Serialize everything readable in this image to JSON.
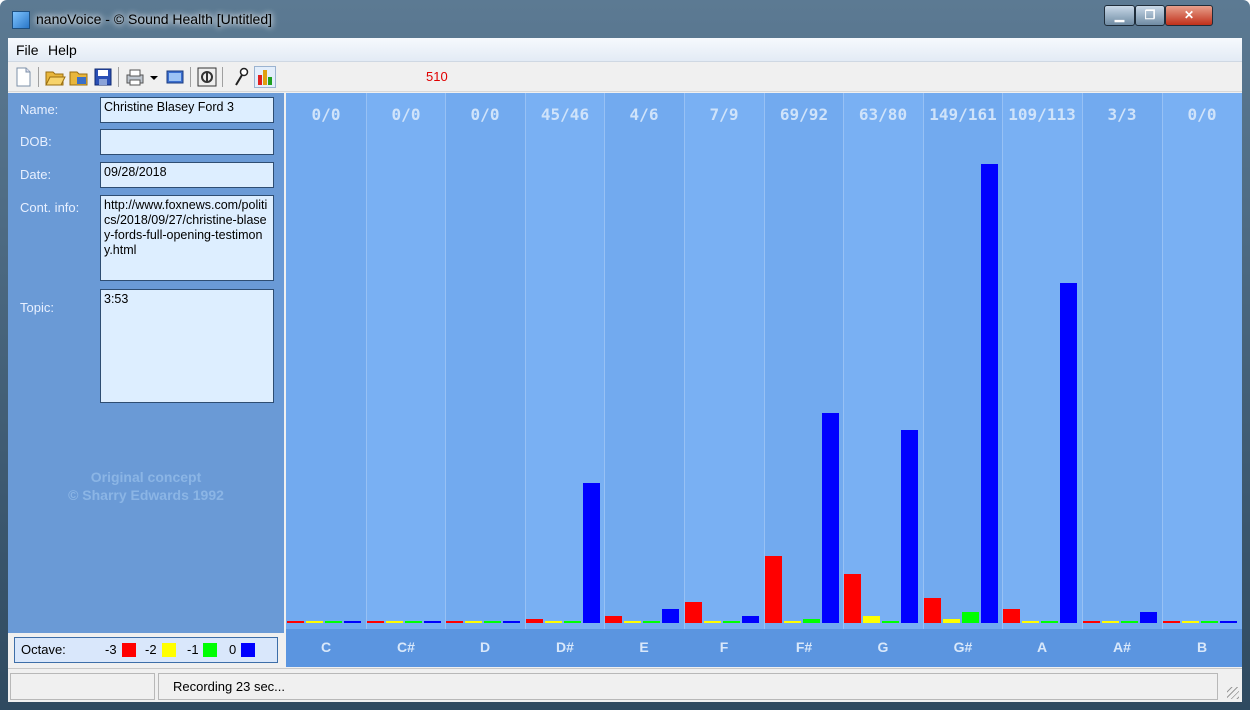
{
  "window": {
    "title": "nanoVoice - © Sound Health [Untitled]",
    "minimize_label": "▁",
    "maximize_label": "❐",
    "close_label": "✕"
  },
  "menu": [
    "File",
    "Help"
  ],
  "toolbar": {
    "icons": [
      "new-icon",
      "open-icon",
      "open-folder-icon",
      "save-icon",
      "print-icon",
      "print-dropdown-icon",
      "display-icon",
      "record-settings-icon",
      "microphone-icon",
      "chart-icon"
    ],
    "counter": "510"
  },
  "form": {
    "name_label": "Name:",
    "name_value": "Christine Blasey Ford 3",
    "dob_label": "DOB:",
    "dob_value": "",
    "date_label": "Date:",
    "date_value": "09/28/2018",
    "contact_label": "Cont. info:",
    "contact_value": "http://www.foxnews.com/politics/2018/09/27/christine-blasey-fords-full-opening-testimony.html",
    "topic_label": "Topic:",
    "topic_value": "3:53"
  },
  "watermark": {
    "line1": "Original concept",
    "line2": "© Sharry Edwards 1992"
  },
  "octave_legend": {
    "label": "Octave:",
    "items": [
      {
        "label": "-3",
        "color": "#ff0000"
      },
      {
        "label": "-2",
        "color": "#ffff00"
      },
      {
        "label": "-1",
        "color": "#00ff00"
      },
      {
        "label": "0",
        "color": "#0000ff"
      }
    ]
  },
  "chart_data": {
    "type": "bar",
    "categories": [
      "C",
      "C#",
      "D",
      "D#",
      "E",
      "F",
      "F#",
      "G",
      "G#",
      "A",
      "A#",
      "B"
    ],
    "column_headers": [
      "0/0",
      "0/0",
      "0/0",
      "45/46",
      "4/6",
      "7/9",
      "69/92",
      "63/80",
      "149/161",
      "109/113",
      "3/3",
      "0/0"
    ],
    "series": [
      {
        "name": "-3",
        "color": "#ff0000",
        "values": [
          0,
          0,
          0,
          1,
          2,
          6,
          19,
          14,
          7,
          4,
          0,
          0
        ]
      },
      {
        "name": "-2",
        "color": "#ffff00",
        "values": [
          0,
          0,
          0,
          0,
          0,
          0,
          0,
          2,
          1,
          0,
          0,
          0
        ]
      },
      {
        "name": "-1",
        "color": "#00ff00",
        "values": [
          0,
          0,
          0,
          0,
          0,
          0,
          1,
          0,
          3,
          0,
          0,
          0
        ]
      },
      {
        "name": "0",
        "color": "#0000ff",
        "values": [
          0,
          0,
          0,
          40,
          4,
          2,
          60,
          55,
          131,
          97,
          3,
          0
        ]
      }
    ],
    "ylim": [
      0,
      131
    ]
  },
  "status": {
    "pane1": "",
    "pane2": "Recording 23 sec..."
  }
}
